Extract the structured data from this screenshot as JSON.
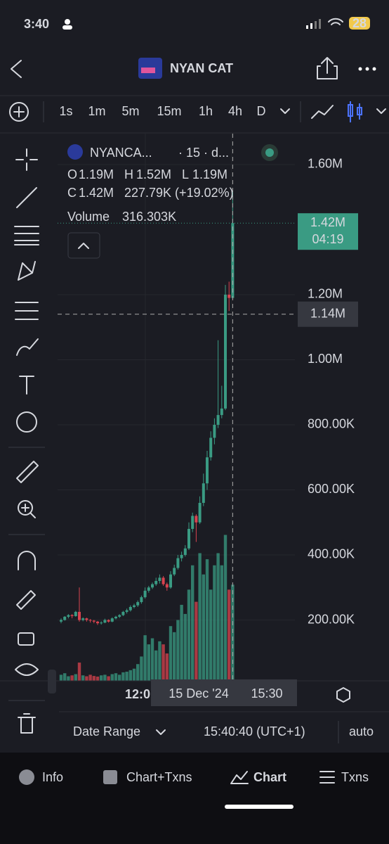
{
  "status": {
    "time": "3:40",
    "battery": "28"
  },
  "header": {
    "title": "NYAN CAT"
  },
  "timeframes": [
    "1s",
    "1m",
    "5m",
    "15m",
    "1h",
    "4h",
    "D"
  ],
  "legend": {
    "symbol": "NYANCA...",
    "meta": "· 15 · d...",
    "o": "O",
    "o_value": "1.19M",
    "h": "H",
    "h_value": "1.52M",
    "l": "L",
    "l_value": "1.19M",
    "c": "C",
    "c_value": "1.42M",
    "change": "227.79K (+19.02%)",
    "volume": "Volume",
    "volume_value": "316.303K"
  },
  "price_tag": {
    "label": "1.42M",
    "timer": "04:19"
  },
  "crosshair": {
    "value": 1140000,
    "label": "1.14M"
  },
  "x_axis": {
    "left": "12:0",
    "date": "15 Dec '24",
    "right": "15:30"
  },
  "footer": {
    "range": "Date Range",
    "clock": "15:40:40 (UTC+1)",
    "mode": "auto"
  },
  "tabs": [
    "Info",
    "Chart+Txns",
    "Chart",
    "Txns"
  ],
  "chart_data": {
    "type": "candlestick",
    "ylim": [
      13000,
      1695000
    ],
    "yticks": [
      {
        "value": 200000,
        "label": "200.00K"
      },
      {
        "value": 400000,
        "label": "400.00K"
      },
      {
        "value": 600000,
        "label": "600.00K"
      },
      {
        "value": 800000,
        "label": "800.00K"
      },
      {
        "value": 1000000,
        "label": "1.00M"
      },
      {
        "value": 1200000,
        "label": "1.20M"
      },
      {
        "value": 1600000,
        "label": "1.60M"
      }
    ],
    "y2lim": [
      0,
      1800000
    ],
    "up_color": "#3a9b83",
    "down_color": "#d9434f",
    "ohlc": [
      [
        195000,
        205000,
        190000,
        200000
      ],
      [
        200000,
        212000,
        198000,
        210000
      ],
      [
        210000,
        218000,
        205000,
        215000
      ],
      [
        215000,
        218000,
        205000,
        212000
      ],
      [
        212000,
        228000,
        210000,
        225000
      ],
      [
        225000,
        300000,
        195000,
        200000
      ],
      [
        200000,
        208000,
        196000,
        205000
      ],
      [
        205000,
        207000,
        195000,
        200000
      ],
      [
        200000,
        203000,
        192000,
        198000
      ],
      [
        198000,
        200000,
        190000,
        195000
      ],
      [
        195000,
        197000,
        185000,
        190000
      ],
      [
        190000,
        196000,
        186000,
        192000
      ],
      [
        192000,
        204000,
        190000,
        200000
      ],
      [
        200000,
        202000,
        192000,
        195000
      ],
      [
        195000,
        208000,
        193000,
        205000
      ],
      [
        205000,
        213000,
        202000,
        210000
      ],
      [
        210000,
        218000,
        206000,
        215000
      ],
      [
        215000,
        228000,
        212000,
        225000
      ],
      [
        225000,
        235000,
        220000,
        230000
      ],
      [
        230000,
        245000,
        226000,
        240000
      ],
      [
        240000,
        250000,
        236000,
        245000
      ],
      [
        245000,
        260000,
        240000,
        255000
      ],
      [
        255000,
        275000,
        250000,
        270000
      ],
      [
        270000,
        300000,
        266000,
        290000
      ],
      [
        290000,
        305000,
        284000,
        300000
      ],
      [
        300000,
        315000,
        295000,
        310000
      ],
      [
        310000,
        330000,
        305000,
        320000
      ],
      [
        320000,
        340000,
        312000,
        330000
      ],
      [
        330000,
        335000,
        305000,
        310000
      ],
      [
        310000,
        315000,
        290000,
        300000
      ],
      [
        300000,
        350000,
        296000,
        340000
      ],
      [
        340000,
        370000,
        335000,
        360000
      ],
      [
        360000,
        400000,
        355000,
        390000
      ],
      [
        390000,
        410000,
        380000,
        400000
      ],
      [
        400000,
        430000,
        395000,
        420000
      ],
      [
        420000,
        500000,
        415000,
        480000
      ],
      [
        480000,
        530000,
        470000,
        520000
      ],
      [
        520000,
        525000,
        440000,
        500000
      ],
      [
        500000,
        580000,
        495000,
        560000
      ],
      [
        560000,
        650000,
        550000,
        620000
      ],
      [
        620000,
        720000,
        600000,
        700000
      ],
      [
        700000,
        780000,
        690000,
        760000
      ],
      [
        760000,
        820000,
        740000,
        800000
      ],
      [
        800000,
        1060000,
        790000,
        830000
      ],
      [
        830000,
        920000,
        820000,
        850000
      ],
      [
        850000,
        1230000,
        845000,
        1200000
      ],
      [
        1200000,
        1240000,
        1150000,
        1190000
      ],
      [
        1190000,
        1520000,
        1190000,
        1420000
      ]
    ],
    "volume": [
      20000,
      25000,
      15000,
      18000,
      22000,
      60000,
      18000,
      15000,
      20000,
      16000,
      14000,
      18000,
      20000,
      15000,
      22000,
      25000,
      20000,
      28000,
      30000,
      35000,
      40000,
      55000,
      80000,
      150000,
      120000,
      140000,
      100000,
      130000,
      120000,
      90000,
      180000,
      160000,
      200000,
      250000,
      220000,
      300000,
      380000,
      260000,
      420000,
      350000,
      400000,
      300000,
      380000,
      420000,
      380000,
      480000,
      300000,
      316303
    ]
  }
}
